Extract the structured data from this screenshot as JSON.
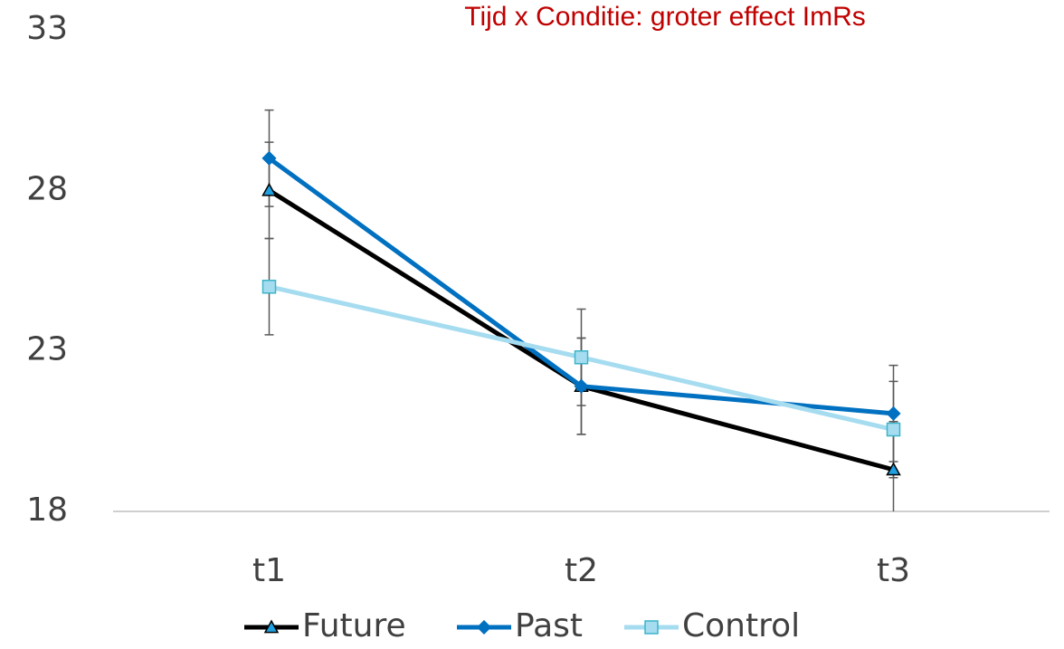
{
  "chart_data": {
    "type": "line",
    "title": "Tijd x Conditie: groter effect ImRs",
    "categories": [
      "t1",
      "t2",
      "t3"
    ],
    "series": [
      {
        "name": "Future",
        "color": "#000000",
        "marker": "triangle",
        "values": [
          28.0,
          21.9,
          19.3
        ],
        "errors": [
          1.5,
          1.5,
          1.5
        ]
      },
      {
        "name": "Past",
        "color": "#0070c0",
        "marker": "diamond",
        "values": [
          29.0,
          21.9,
          21.05
        ],
        "errors": [
          1.5,
          1.5,
          1.5
        ]
      },
      {
        "name": "Control",
        "color": "#a6dcf0",
        "marker": "square",
        "values": [
          25.0,
          22.8,
          20.55
        ],
        "errors": [
          1.5,
          1.5,
          1.5
        ]
      }
    ],
    "ylim": [
      18,
      33
    ],
    "yticks": [
      18,
      23,
      28,
      33
    ],
    "legend": "bottom"
  }
}
